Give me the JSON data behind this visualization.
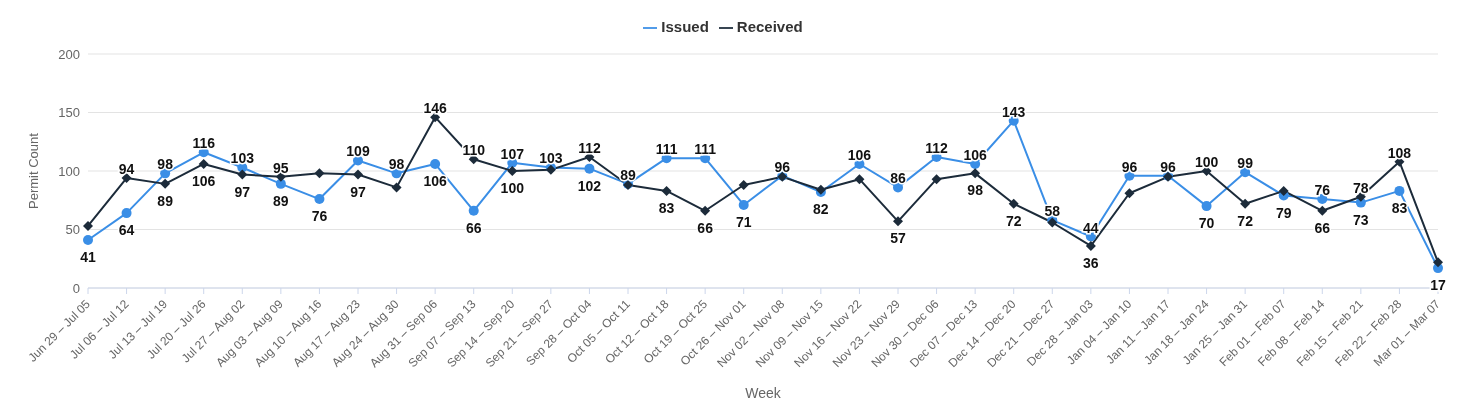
{
  "chart_data": {
    "type": "line",
    "xlabel": "Week",
    "ylabel": "Permit Count",
    "categories": [
      "Jun 29 – Jul 05",
      "Jul 06 – Jul 12",
      "Jul 13 – Jul 19",
      "Jul 20 – Jul 26",
      "Jul 27 – Aug 02",
      "Aug 03 – Aug 09",
      "Aug 10 – Aug 16",
      "Aug 17 – Aug 23",
      "Aug 24 – Aug 30",
      "Aug 31 – Sep 06",
      "Sep 07 – Sep 13",
      "Sep 14 – Sep 20",
      "Sep 21 – Sep 27",
      "Sep 28 – Oct 04",
      "Oct 05 – Oct 11",
      "Oct 12 – Oct 18",
      "Oct 19 – Oct 25",
      "Oct 26 – Nov 01",
      "Nov 02 – Nov 08",
      "Nov 09 – Nov 15",
      "Nov 16 – Nov 22",
      "Nov 23 – Nov 29",
      "Nov 30 – Dec 06",
      "Dec 07 – Dec 13",
      "Dec 14 – Dec 20",
      "Dec 21 – Dec 27",
      "Dec 28 – Jan 03",
      "Jan 04 – Jan 10",
      "Jan 11 – Jan 17",
      "Jan 18 – Jan 24",
      "Jan 25 – Jan 31",
      "Feb 01 – Feb 07",
      "Feb 08 – Feb 14",
      "Feb 15 – Feb 21",
      "Feb 22 – Feb 28",
      "Mar 01 – Mar 07"
    ],
    "series": [
      {
        "name": "Issued",
        "color": "#3a8ee6",
        "marker": "circle",
        "values": [
          41,
          64,
          98,
          116,
          103,
          89,
          76,
          109,
          98,
          106,
          66,
          107,
          103,
          102,
          89,
          111,
          111,
          71,
          96,
          82,
          106,
          86,
          112,
          106,
          143,
          58,
          44,
          96,
          96,
          70,
          99,
          79,
          76,
          73,
          83,
          17
        ],
        "value_labels": [
          "41",
          "64",
          "98",
          "116",
          "103",
          "89",
          "76",
          "109",
          "98",
          "106",
          "66",
          "107",
          "103",
          "102",
          "89",
          "111",
          "111",
          "71",
          "96",
          "82",
          "106",
          "86",
          "112",
          "106",
          "143",
          "58",
          "44",
          "96",
          "96",
          "70",
          "99",
          "79",
          "76",
          "73",
          "83",
          "17"
        ]
      },
      {
        "name": "Received",
        "color": "#1c2b3a",
        "marker": "diamond",
        "values": [
          53,
          94,
          89,
          106,
          97,
          95,
          98,
          97,
          86,
          146,
          110,
          100,
          101,
          112,
          88,
          83,
          66,
          88,
          95,
          84,
          93,
          57,
          93,
          98,
          72,
          56,
          36,
          81,
          95,
          100,
          72,
          83,
          66,
          78,
          108,
          22
        ],
        "value_labels": [
          null,
          "94",
          "89",
          "106",
          "97",
          "95",
          null,
          "97",
          null,
          "146",
          "110",
          "100",
          null,
          "112",
          null,
          "83",
          "66",
          null,
          null,
          null,
          null,
          "57",
          null,
          "98",
          "72",
          null,
          "36",
          null,
          null,
          "100",
          "72",
          null,
          "66",
          "78",
          "108",
          null
        ]
      }
    ],
    "ylim": [
      0,
      200
    ],
    "yticks": [
      0,
      50,
      100,
      150,
      200
    ],
    "grid": "y",
    "legend": "top"
  }
}
